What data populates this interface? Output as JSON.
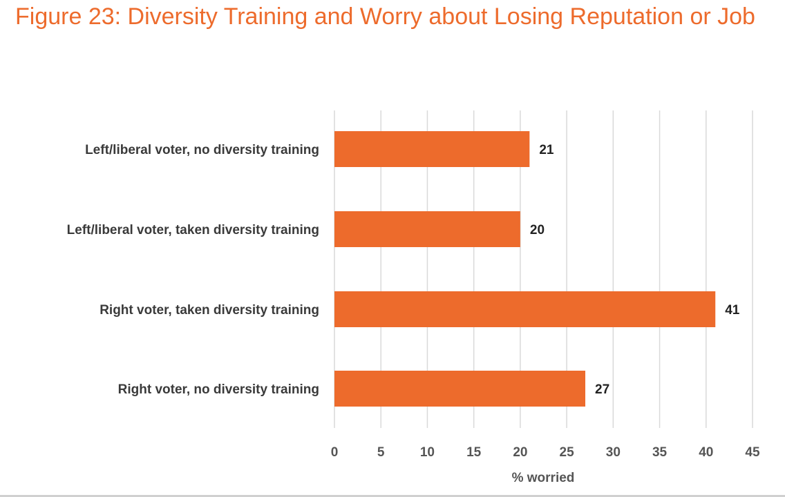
{
  "chart_data": {
    "type": "bar",
    "orientation": "horizontal",
    "title": "Figure 23: Diversity Training and Worry about Losing Reputation or Job",
    "categories": [
      "Left/liberal voter, no diversity training",
      "Left/liberal voter, taken diversity training",
      "Right voter, taken diversity training",
      "Right voter, no diversity training"
    ],
    "values": [
      21,
      20,
      41,
      27
    ],
    "xlabel": "% worried",
    "ylabel": "",
    "xlim": [
      0,
      45
    ],
    "xticks": [
      0,
      5,
      10,
      15,
      20,
      25,
      30,
      35,
      40,
      45
    ],
    "grid": true,
    "bar_color": "#ed6b2c",
    "title_color": "#ed6b2c"
  }
}
